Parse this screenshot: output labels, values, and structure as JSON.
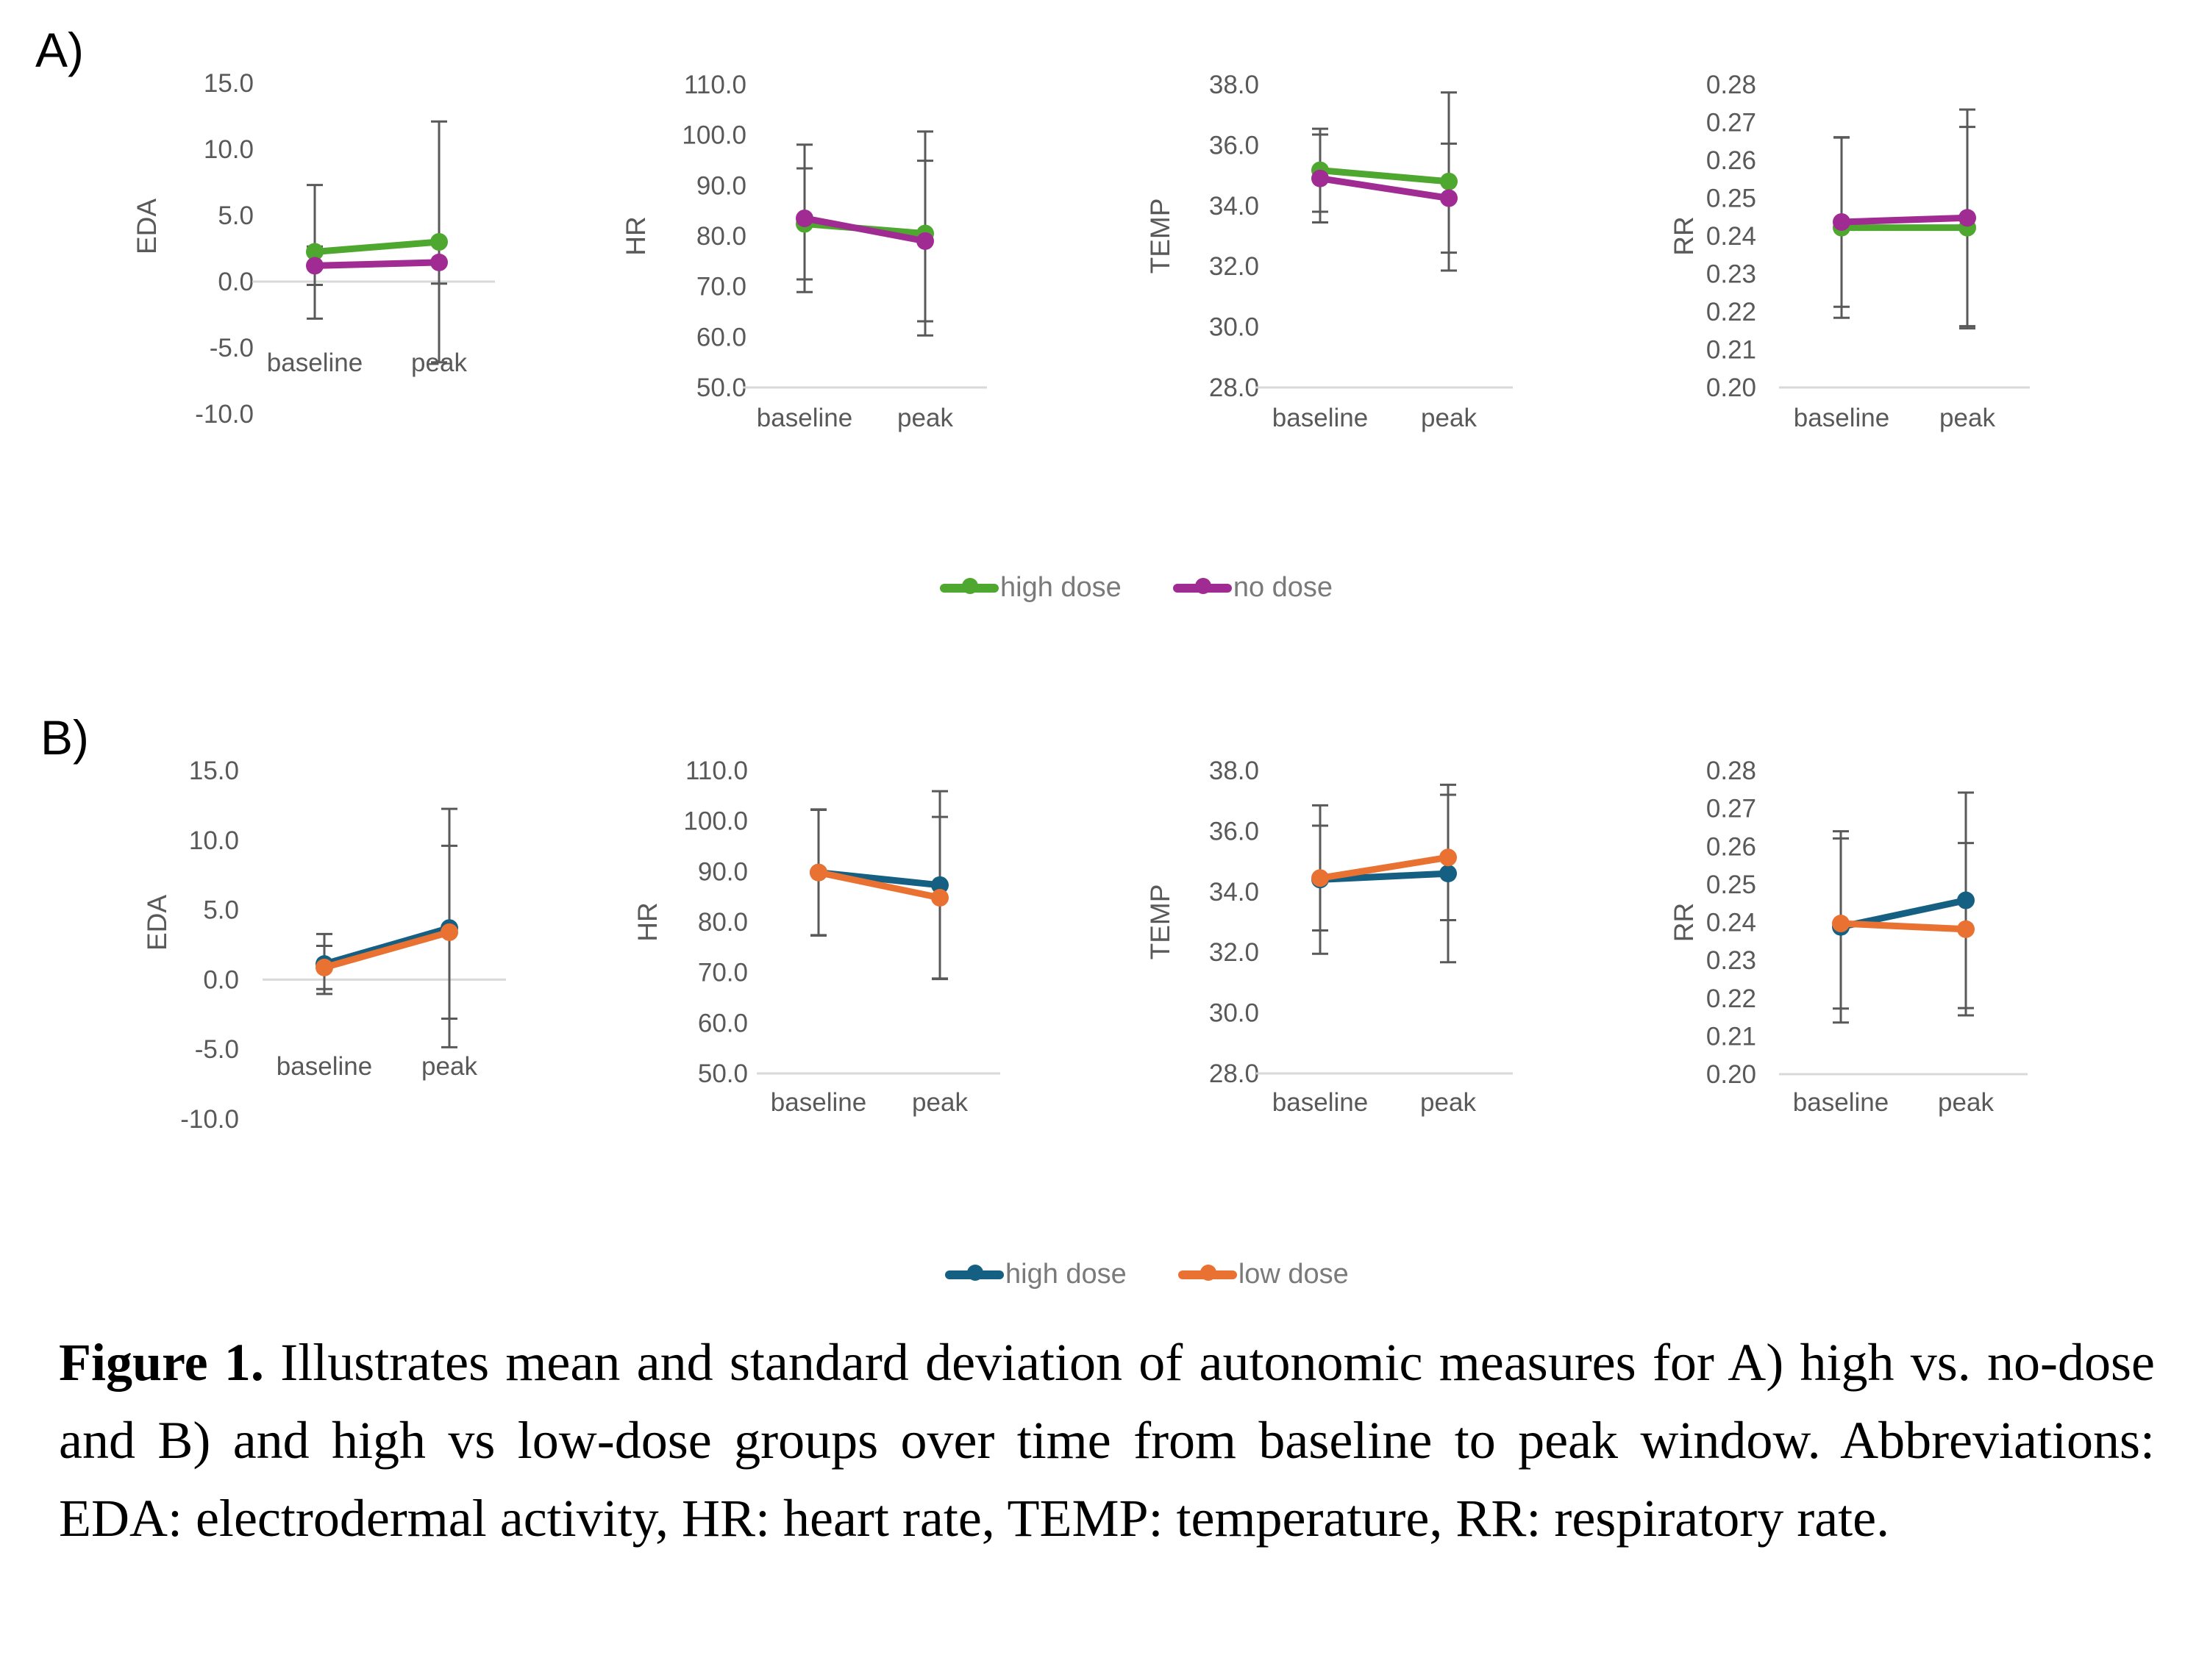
{
  "panels": {
    "a_label": "A)",
    "b_label": "B)"
  },
  "legend_a": [
    {
      "label": "high dose",
      "color": "#4EA72E"
    },
    {
      "label": "no dose",
      "color": "#A02B93"
    }
  ],
  "legend_b": [
    {
      "label": "high dose",
      "color": "#156082"
    },
    {
      "label": "low dose",
      "color": "#E97132"
    }
  ],
  "caption": {
    "bold": "Figure 1.",
    "text": "  Illustrates mean and standard deviation of autonomic measures for A) high vs. no-dose and B) and high vs low-dose groups over time from baseline to peak window. Abbreviations: EDA: electrodermal activity, HR: heart rate, TEMP: temperature, RR: respiratory rate."
  },
  "chart_data": [
    {
      "id": "A-EDA",
      "panel": "A",
      "type": "line",
      "ylabel": "EDA",
      "categories": [
        "baseline",
        "peak"
      ],
      "ylim": [
        -10,
        15
      ],
      "yticks": [
        "-10.0",
        "-5.0",
        "0.0",
        "5.0",
        "10.0",
        "15.0"
      ],
      "ytick_values": [
        -10,
        -5,
        0,
        5,
        10,
        15
      ],
      "x_axis_at": 0,
      "legend": "bottom",
      "grid": false,
      "series": [
        {
          "name": "high dose",
          "color": "#4EA72E",
          "values": [
            2.25,
            3.0
          ],
          "sd": [
            5.05,
            9.1
          ]
        },
        {
          "name": "no dose",
          "color": "#A02B93",
          "values": [
            1.2,
            1.45
          ],
          "sd": [
            1.45,
            1.6
          ]
        }
      ]
    },
    {
      "id": "A-HR",
      "panel": "A",
      "type": "line",
      "ylabel": "HR",
      "categories": [
        "baseline",
        "peak"
      ],
      "ylim": [
        50,
        110
      ],
      "yticks": [
        "50.0",
        "60.0",
        "70.0",
        "80.0",
        "90.0",
        "100.0",
        "110.0"
      ],
      "ytick_values": [
        50,
        60,
        70,
        80,
        90,
        100,
        110
      ],
      "x_axis_at": 50,
      "legend": "bottom",
      "grid": false,
      "series": [
        {
          "name": "high dose",
          "color": "#4EA72E",
          "values": [
            82.4,
            80.5
          ],
          "sd": [
            11.0,
            20.2
          ]
        },
        {
          "name": "no dose",
          "color": "#A02B93",
          "values": [
            83.5,
            79.0
          ],
          "sd": [
            14.6,
            15.9
          ]
        }
      ]
    },
    {
      "id": "A-TEMP",
      "panel": "A",
      "type": "line",
      "ylabel": "TEMP",
      "categories": [
        "baseline",
        "peak"
      ],
      "ylim": [
        28,
        38
      ],
      "yticks": [
        "28.0",
        "30.0",
        "32.0",
        "34.0",
        "36.0",
        "38.0"
      ],
      "ytick_values": [
        28,
        30,
        32,
        34,
        36,
        38
      ],
      "x_axis_at": 28,
      "legend": "bottom",
      "grid": false,
      "series": [
        {
          "name": "high dose",
          "color": "#4EA72E",
          "values": [
            35.17,
            34.8
          ],
          "sd": [
            1.37,
            2.94
          ]
        },
        {
          "name": "no dose",
          "color": "#A02B93",
          "values": [
            34.9,
            34.25
          ],
          "sd": [
            1.45,
            1.8
          ]
        }
      ]
    },
    {
      "id": "A-RR",
      "panel": "A",
      "type": "line",
      "ylabel": "RR",
      "categories": [
        "baseline",
        "peak"
      ],
      "ylim": [
        0.2,
        0.28
      ],
      "yticks": [
        "0.20",
        "0.21",
        "0.22",
        "0.23",
        "0.24",
        "0.25",
        "0.26",
        "0.27",
        "0.28"
      ],
      "ytick_values": [
        0.2,
        0.21,
        0.22,
        0.23,
        0.24,
        0.25,
        0.26,
        0.27,
        0.28
      ],
      "x_axis_at": 0.2,
      "legend": "bottom",
      "grid": false,
      "series": [
        {
          "name": "high dose",
          "color": "#4EA72E",
          "values": [
            0.2422,
            0.2422
          ],
          "sd": [
            0.0238,
            0.0266
          ]
        },
        {
          "name": "no dose",
          "color": "#A02B93",
          "values": [
            0.2437,
            0.2448
          ],
          "sd": [
            0.0224,
            0.0286
          ]
        }
      ]
    },
    {
      "id": "B-EDA",
      "panel": "B",
      "type": "line",
      "ylabel": "EDA",
      "categories": [
        "baseline",
        "peak"
      ],
      "ylim": [
        -10,
        15
      ],
      "yticks": [
        "-10.0",
        "-5.0",
        "0.0",
        "5.0",
        "10.0",
        "15.0"
      ],
      "ytick_values": [
        -10,
        -5,
        0,
        5,
        10,
        15
      ],
      "x_axis_at": 0,
      "legend": "bottom",
      "grid": false,
      "series": [
        {
          "name": "high dose",
          "color": "#156082",
          "values": [
            1.12,
            3.7
          ],
          "sd": [
            2.15,
            8.55
          ]
        },
        {
          "name": "low dose",
          "color": "#E97132",
          "values": [
            0.87,
            3.4
          ],
          "sd": [
            1.55,
            6.2
          ]
        }
      ]
    },
    {
      "id": "B-HR",
      "panel": "B",
      "type": "line",
      "ylabel": "HR",
      "categories": [
        "baseline",
        "peak"
      ],
      "ylim": [
        50,
        110
      ],
      "yticks": [
        "50.0",
        "60.0",
        "70.0",
        "80.0",
        "90.0",
        "100.0",
        "110.0"
      ],
      "ytick_values": [
        50,
        60,
        70,
        80,
        90,
        100,
        110
      ],
      "x_axis_at": 50,
      "legend": "bottom",
      "grid": false,
      "series": [
        {
          "name": "high dose",
          "color": "#156082",
          "values": [
            89.8,
            87.3
          ],
          "sd": [
            12.4,
            18.6
          ]
        },
        {
          "name": "low dose",
          "color": "#E97132",
          "values": [
            89.8,
            84.8
          ],
          "sd": [
            12.5,
            16.0
          ]
        }
      ]
    },
    {
      "id": "B-TEMP",
      "panel": "B",
      "type": "line",
      "ylabel": "TEMP",
      "categories": [
        "baseline",
        "peak"
      ],
      "ylim": [
        28,
        38
      ],
      "yticks": [
        "28.0",
        "30.0",
        "32.0",
        "34.0",
        "36.0",
        "38.0"
      ],
      "ytick_values": [
        28,
        30,
        32,
        34,
        36,
        38
      ],
      "x_axis_at": 28,
      "legend": "bottom",
      "grid": false,
      "series": [
        {
          "name": "high dose",
          "color": "#156082",
          "values": [
            34.4,
            34.6
          ],
          "sd": [
            2.45,
            2.93
          ]
        },
        {
          "name": "low dose",
          "color": "#E97132",
          "values": [
            34.45,
            35.13
          ],
          "sd": [
            1.73,
            2.07
          ]
        }
      ]
    },
    {
      "id": "B-RR",
      "panel": "B",
      "type": "line",
      "ylabel": "RR",
      "categories": [
        "baseline",
        "peak"
      ],
      "ylim": [
        0.2,
        0.28
      ],
      "yticks": [
        "0.20",
        "0.21",
        "0.22",
        "0.23",
        "0.24",
        "0.25",
        "0.26",
        "0.27",
        "0.28"
      ],
      "ytick_values": [
        0.2,
        0.21,
        0.22,
        0.23,
        0.24,
        0.25,
        0.26,
        0.27,
        0.28
      ],
      "x_axis_at": 0.2,
      "legend": "bottom",
      "grid": false,
      "series": [
        {
          "name": "high dose",
          "color": "#156082",
          "values": [
            0.2388,
            0.2458
          ],
          "sd": [
            0.0252,
            0.0284
          ]
        },
        {
          "name": "low dose",
          "color": "#E97132",
          "values": [
            0.2397,
            0.2382
          ],
          "sd": [
            0.0224,
            0.0227
          ]
        }
      ]
    }
  ]
}
